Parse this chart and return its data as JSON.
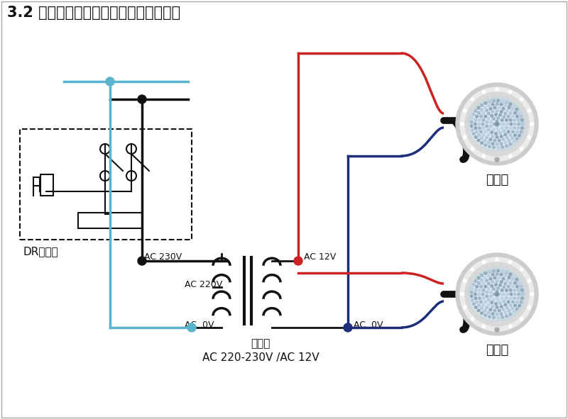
{
  "title": "3.2 水下灯在单色模式中的连线应用示例",
  "label_dr": "DR断路器",
  "label_transformer_line1": "变压器",
  "label_transformer_line2": "AC 220-230V /AC 12V",
  "label_light": "水下灯",
  "label_ac230": "AC 230V",
  "label_ac220": "AC 220V",
  "label_ac0v_left": "AC  0V",
  "label_ac12v": "AC 12V",
  "label_ac0v_right": "AC  0V",
  "colors": {
    "blue_light": "#5ab3cf",
    "blue_dark": "#1c2d7a",
    "red": "#cc2222",
    "black": "#111111",
    "white": "#ffffff",
    "gray_outer": "#cccccc",
    "gray_ring": "#e8e8e8",
    "gray_inner": "#b0bec5",
    "background": "#ffffff"
  },
  "fig_width": 8.0,
  "fig_height": 5.91
}
